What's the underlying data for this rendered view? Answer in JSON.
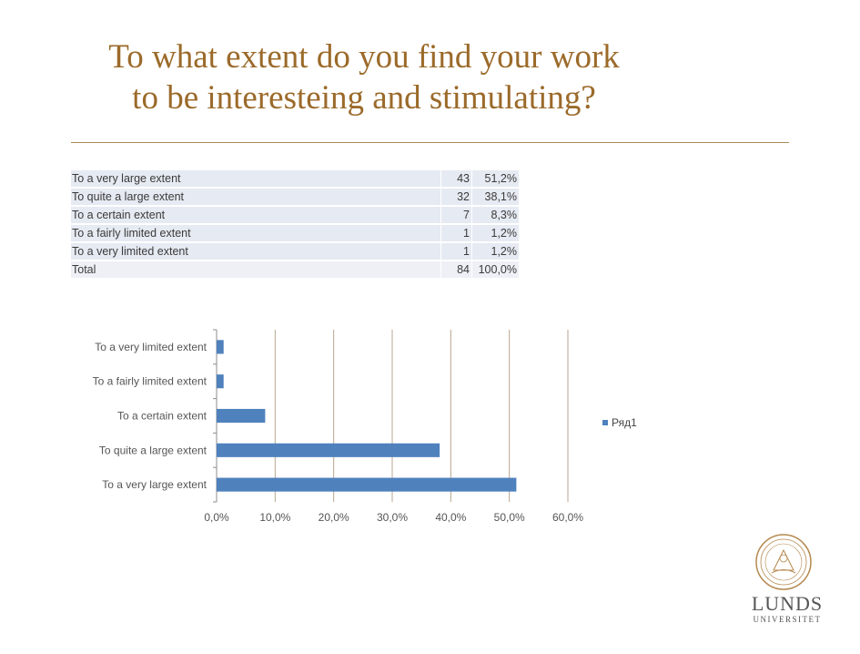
{
  "title": {
    "line1": "To what extent do you find your work",
    "line2": "to be interesteing and stimulating?"
  },
  "table": {
    "rows": [
      {
        "label": "To a very large extent",
        "count": "43",
        "percent": "51,2%"
      },
      {
        "label": "To quite a large extent",
        "count": "32",
        "percent": "38,1%"
      },
      {
        "label": "To a certain extent",
        "count": "7",
        "percent": "8,3%"
      },
      {
        "label": "To a fairly limited extent",
        "count": "1",
        "percent": "1,2%"
      },
      {
        "label": "To a very limited extent",
        "count": "1",
        "percent": "1,2%"
      },
      {
        "label": "Total",
        "count": "84",
        "percent": "100,0%"
      }
    ]
  },
  "chart_data": {
    "type": "bar",
    "orientation": "horizontal",
    "categories": [
      "To a very large extent",
      "To quite a large extent",
      "To a certain extent",
      "To a fairly limited extent",
      "To a very limited extent"
    ],
    "series": [
      {
        "name": "Ряд1",
        "values": [
          51.2,
          38.1,
          8.3,
          1.2,
          1.2
        ],
        "color": "#4f81bd"
      }
    ],
    "x_ticks": [
      "0,0%",
      "10,0%",
      "20,0%",
      "30,0%",
      "40,0%",
      "50,0%",
      "60,0%"
    ],
    "xlim": [
      0,
      60
    ],
    "grid": true,
    "legend_position": "right"
  },
  "logo": {
    "name_line1": "LUNDS",
    "name_line2": "UNIVERSITET"
  }
}
